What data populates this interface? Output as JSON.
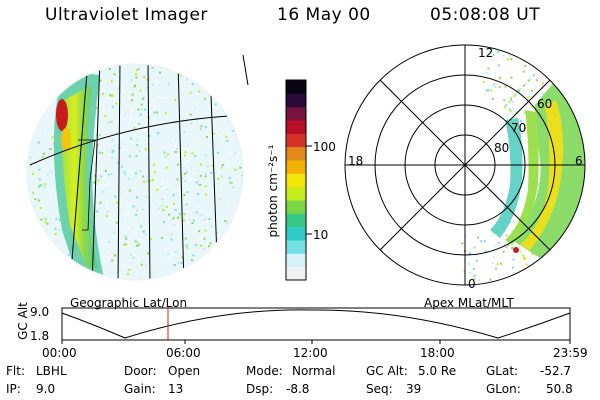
{
  "header": {
    "instrument": "Ultraviolet Imager",
    "date": "16 May 00",
    "time": "05:08:08 UT"
  },
  "left_panel": {
    "caption": "Geographic Lat/Lon",
    "peak_color": "#c81b1b"
  },
  "colorbar": {
    "axis_label": "photon cm⁻²s⁻¹",
    "ticks": [
      "100",
      "10"
    ],
    "palette": [
      "#f2f2f2",
      "#d7f3f7",
      "#74e0e6",
      "#31c9c9",
      "#37c885",
      "#79d646",
      "#c7ec1b",
      "#f5e60a",
      "#f4b005",
      "#e38b1a",
      "#d43227",
      "#b8102a",
      "#78133e",
      "#2a0a3b",
      "#070311"
    ]
  },
  "right_panel": {
    "caption": "Apex MLat/MLT",
    "mlt_labels": {
      "top": "12",
      "left": "18",
      "right": "6",
      "bottom": "0"
    },
    "lat_labels": [
      "60",
      "70",
      "80"
    ]
  },
  "timeline": {
    "ylabel": "GC Alt",
    "yticks": [
      "9.0",
      "1.8"
    ],
    "xticks": [
      "00:00",
      "06:00",
      "12:00",
      "18:00",
      "23:59"
    ],
    "current_marker_color": "#cc2222"
  },
  "footer": {
    "row1": [
      {
        "label": "Flt:",
        "value": "LBHL"
      },
      {
        "label": "Door:",
        "value": "Open"
      },
      {
        "label": "Mode:",
        "value": "Normal"
      },
      {
        "label": "GC Alt:",
        "value": "5.0 Re"
      },
      {
        "label": "GLat:",
        "value": "-52.7"
      }
    ],
    "row2": [
      {
        "label": "IP:",
        "value": "9.0"
      },
      {
        "label": "Gain:",
        "value": "13"
      },
      {
        "label": "Dsp:",
        "value": "-8.8"
      },
      {
        "label": "Seq:",
        "value": "39"
      },
      {
        "label": "GLon:",
        "value": "50.8"
      }
    ]
  }
}
